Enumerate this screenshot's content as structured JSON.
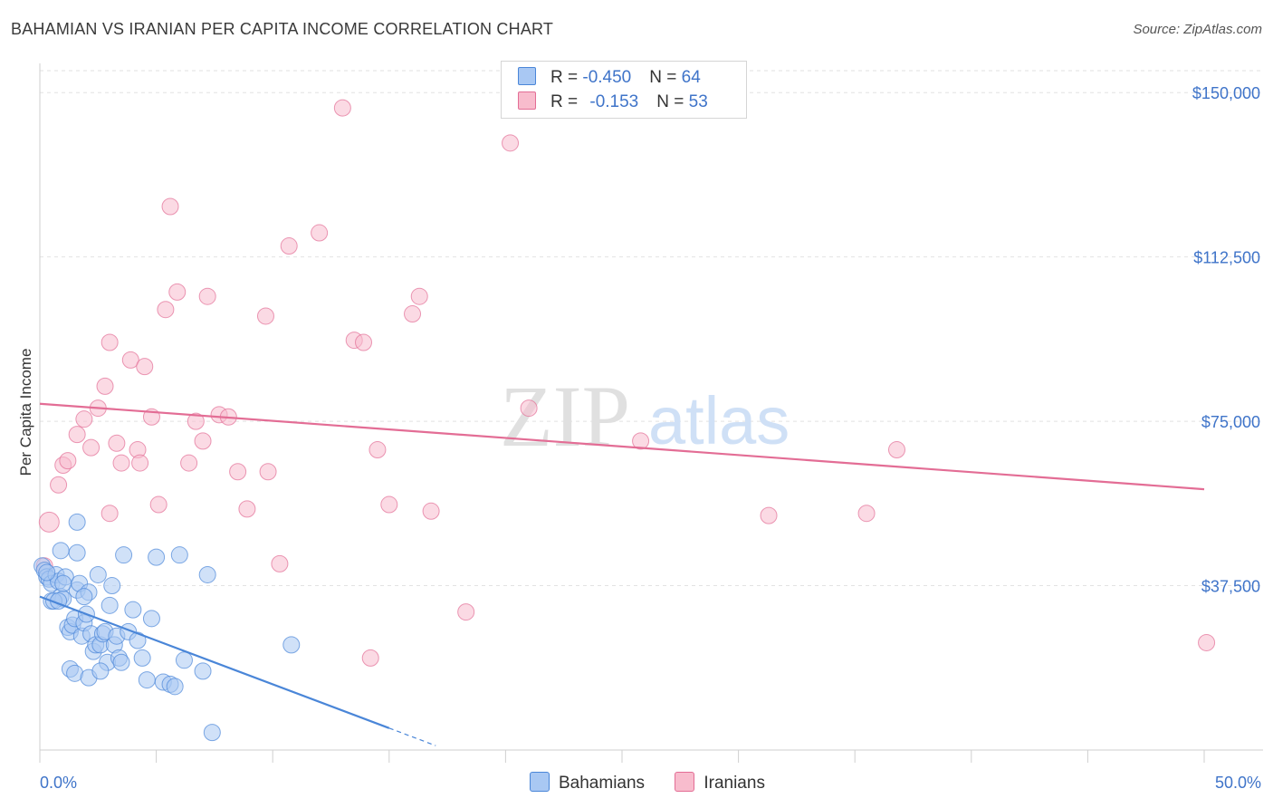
{
  "title": "BAHAMIAN VS IRANIAN PER CAPITA INCOME CORRELATION CHART",
  "source": "Source: ZipAtlas.com",
  "watermark": {
    "zip": "ZIP",
    "atlas": "atlas"
  },
  "legend": {
    "rows": [
      {
        "r_label": "R = ",
        "r_value": "-0.450",
        "n_label": "N = ",
        "n_value": "64",
        "color": "#a9c8f3"
      },
      {
        "r_label": "R = ",
        "r_value": "-0.153",
        "n_label": "N = ",
        "n_value": "53",
        "color": "#f8bccd"
      }
    ]
  },
  "bottom_legend": [
    {
      "label": "Bahamians",
      "color": "#a9c8f3"
    },
    {
      "label": "Iranians",
      "color": "#f8bccd"
    }
  ],
  "chart_data": {
    "type": "scatter",
    "title": "BAHAMIAN VS IRANIAN PER CAPITA INCOME CORRELATION CHART",
    "xlabel": "",
    "ylabel": "Per Capita Income",
    "xlim": [
      0,
      50
    ],
    "ylim": [
      0,
      155000
    ],
    "x_tick_labels": [
      "0.0%",
      "50.0%"
    ],
    "y_ticks": [
      37500,
      75000,
      112500,
      150000
    ],
    "y_tick_labels": [
      "$37,500",
      "$75,000",
      "$112,500",
      "$150,000"
    ],
    "grid": true,
    "series": [
      {
        "name": "Bahamians",
        "color": "#4a86d8",
        "fill": "#a9c8f3",
        "trend": {
          "x0": 0,
          "y0": 35000,
          "x1": 15,
          "y1": 5000,
          "dash_to_x": 17
        },
        "points": [
          [
            0.1,
            42000
          ],
          [
            0.2,
            41000
          ],
          [
            0.3,
            39500
          ],
          [
            0.4,
            39000
          ],
          [
            0.5,
            38000
          ],
          [
            0.5,
            34000
          ],
          [
            0.7,
            40000
          ],
          [
            0.8,
            38500
          ],
          [
            0.9,
            35000
          ],
          [
            1.0,
            34500
          ],
          [
            1.1,
            39500
          ],
          [
            1.2,
            28000
          ],
          [
            1.3,
            27000
          ],
          [
            1.4,
            28500
          ],
          [
            1.5,
            30000
          ],
          [
            1.6,
            36500
          ],
          [
            1.7,
            38000
          ],
          [
            1.8,
            26000
          ],
          [
            1.9,
            29000
          ],
          [
            2.0,
            31000
          ],
          [
            2.1,
            36000
          ],
          [
            2.2,
            26500
          ],
          [
            2.3,
            22500
          ],
          [
            2.4,
            24000
          ],
          [
            2.5,
            40000
          ],
          [
            2.6,
            24000
          ],
          [
            2.7,
            26500
          ],
          [
            2.8,
            27000
          ],
          [
            2.9,
            20000
          ],
          [
            3.0,
            33000
          ],
          [
            3.1,
            37500
          ],
          [
            3.2,
            24000
          ],
          [
            3.3,
            26000
          ],
          [
            3.4,
            21000
          ],
          [
            3.5,
            20000
          ],
          [
            3.6,
            44500
          ],
          [
            3.8,
            27000
          ],
          [
            4.0,
            32000
          ],
          [
            4.2,
            25000
          ],
          [
            4.4,
            21000
          ],
          [
            4.6,
            16000
          ],
          [
            4.8,
            30000
          ],
          [
            5.0,
            44000
          ],
          [
            5.3,
            15500
          ],
          [
            5.6,
            15000
          ],
          [
            5.8,
            14500
          ],
          [
            6.0,
            44500
          ],
          [
            6.2,
            20500
          ],
          [
            7.0,
            18000
          ],
          [
            7.2,
            40000
          ],
          [
            7.4,
            4000
          ],
          [
            10.8,
            24000
          ],
          [
            1.6,
            45000
          ],
          [
            1.3,
            18500
          ],
          [
            1.5,
            17500
          ],
          [
            2.1,
            16500
          ],
          [
            2.6,
            18000
          ],
          [
            0.6,
            34000
          ],
          [
            1.0,
            38000
          ],
          [
            1.9,
            35000
          ],
          [
            0.9,
            45500
          ],
          [
            1.6,
            52000
          ],
          [
            0.3,
            40500
          ],
          [
            0.8,
            34000
          ]
        ]
      },
      {
        "name": "Iranians",
        "color": "#e36d95",
        "fill": "#f8bccd",
        "trend": {
          "x0": 0,
          "y0": 79000,
          "x1": 50,
          "y1": 59500
        },
        "points": [
          [
            0.2,
            42000
          ],
          [
            0.4,
            52000
          ],
          [
            0.8,
            60500
          ],
          [
            1.0,
            65000
          ],
          [
            1.2,
            66000
          ],
          [
            1.6,
            72000
          ],
          [
            1.9,
            75500
          ],
          [
            2.2,
            69000
          ],
          [
            2.5,
            78000
          ],
          [
            2.8,
            83000
          ],
          [
            3.0,
            93000
          ],
          [
            3.3,
            70000
          ],
          [
            3.5,
            65500
          ],
          [
            3.9,
            89000
          ],
          [
            4.2,
            68500
          ],
          [
            4.3,
            65500
          ],
          [
            4.5,
            87500
          ],
          [
            4.8,
            76000
          ],
          [
            5.1,
            56000
          ],
          [
            5.4,
            100500
          ],
          [
            5.6,
            124000
          ],
          [
            5.9,
            104500
          ],
          [
            6.4,
            65500
          ],
          [
            6.7,
            75000
          ],
          [
            7.0,
            70500
          ],
          [
            7.2,
            103500
          ],
          [
            7.7,
            76500
          ],
          [
            8.1,
            76000
          ],
          [
            8.5,
            63500
          ],
          [
            8.9,
            55000
          ],
          [
            9.7,
            99000
          ],
          [
            9.8,
            63500
          ],
          [
            10.3,
            42500
          ],
          [
            10.7,
            115000
          ],
          [
            12.0,
            118000
          ],
          [
            13.0,
            146500
          ],
          [
            13.5,
            93500
          ],
          [
            13.9,
            93000
          ],
          [
            14.2,
            21000
          ],
          [
            14.5,
            68500
          ],
          [
            15.0,
            56000
          ],
          [
            16.0,
            99500
          ],
          [
            16.3,
            103500
          ],
          [
            16.8,
            54500
          ],
          [
            18.3,
            31500
          ],
          [
            20.2,
            138500
          ],
          [
            21.0,
            78000
          ],
          [
            25.8,
            70500
          ],
          [
            31.3,
            53500
          ],
          [
            35.5,
            54000
          ],
          [
            36.8,
            68500
          ],
          [
            50.1,
            24500
          ],
          [
            3.0,
            54000
          ]
        ]
      }
    ]
  }
}
